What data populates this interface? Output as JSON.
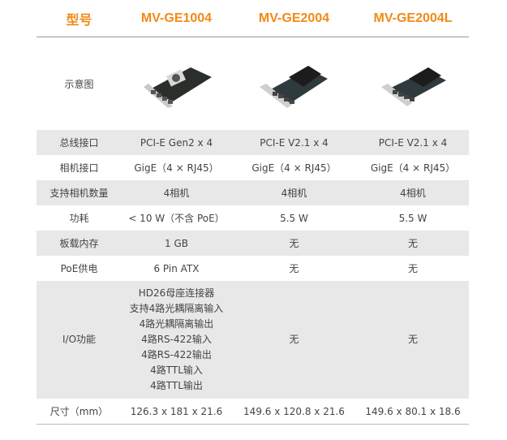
{
  "header": {
    "label": "型号",
    "models": [
      "MV-GE1004",
      "MV-GE2004",
      "MV-GE2004L"
    ]
  },
  "colors": {
    "accent": "#f08a16",
    "stripe": "#e8e8e8"
  },
  "rows": [
    {
      "label": "示意图",
      "type": "image",
      "values": [
        "pcie-card-with-fan-image",
        "pcie-card-with-heatsink-image",
        "low-profile-pcie-card-image"
      ]
    },
    {
      "label": "总线接口",
      "values": [
        "PCI-E Gen2 x 4",
        "PCI-E V2.1 x 4",
        "PCI-E V2.1 x 4"
      ]
    },
    {
      "label": "相机接口",
      "values": [
        "GigE（4 × RJ45）",
        "GigE（4 × RJ45）",
        "GigE（4 × RJ45）"
      ]
    },
    {
      "label": "支持相机数量",
      "values": [
        "4相机",
        "4相机",
        "4相机"
      ]
    },
    {
      "label": "功耗",
      "values": [
        "< 10 W（不含 PoE）",
        "5.5 W",
        "5.5 W"
      ]
    },
    {
      "label": "板载内存",
      "values": [
        "1 GB",
        "无",
        "无"
      ]
    },
    {
      "label": "PoE供电",
      "values": [
        "6 Pin ATX",
        "无",
        "无"
      ]
    },
    {
      "label": "I/O功能",
      "values": [
        [
          "HD26母座连接器",
          "支持4路光耦隔离输入",
          "4路光耦隔离输出",
          "4路RS-422输入",
          "4路RS-422输出",
          "4路TTL输入",
          "4路TTL输出"
        ],
        "无",
        "无"
      ]
    },
    {
      "label": "尺寸（mm）",
      "values": [
        "126.3 x 181 x 21.6",
        "149.6 x 120.8 x 21.6",
        "149.6 x 80.1 x 18.6"
      ]
    }
  ]
}
